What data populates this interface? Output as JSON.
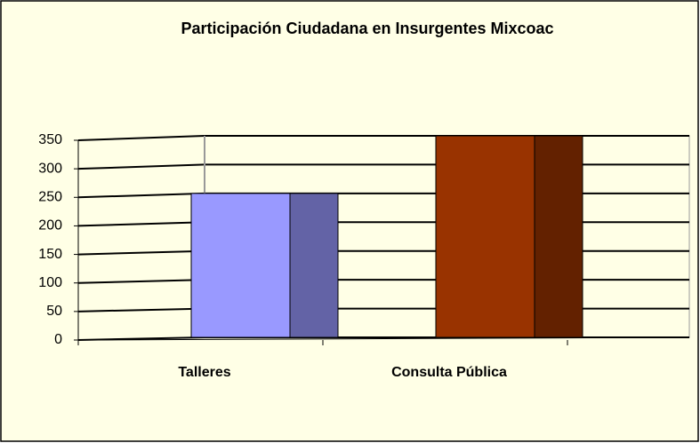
{
  "chart_data": {
    "type": "bar3d",
    "title": "Participación Ciudadana en Insurgentes Mixcoac",
    "categories": [
      "Talleres",
      "Consulta Pública"
    ],
    "values": [
      250,
      350
    ],
    "colors": [
      "#9999ff",
      "#993300"
    ],
    "ylim": [
      0,
      350
    ],
    "yticks": [
      0,
      50,
      100,
      150,
      200,
      250,
      300,
      350
    ],
    "grid": true
  }
}
